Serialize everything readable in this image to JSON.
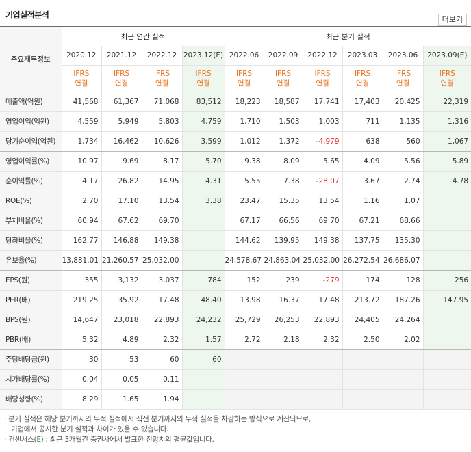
{
  "section_title": "기업실적분석",
  "more_label": "더보기",
  "header": {
    "row_label": "주요재무정보",
    "annual_group": "최근 연간 실적",
    "quarter_group": "최근 분기 실적",
    "annual_periods": [
      "2020.12",
      "2021.12",
      "2022.12",
      "2023.12(E)"
    ],
    "quarter_periods": [
      "2022.06",
      "2022.09",
      "2022.12",
      "2023.03",
      "2023.06",
      "2023.09(E)"
    ],
    "ifrs_top": "IFRS",
    "ifrs_bottom": "연결"
  },
  "rows": [
    {
      "label": "매출액(억원)",
      "values": [
        "41,568",
        "61,367",
        "71,068",
        "83,512",
        "18,223",
        "18,587",
        "17,741",
        "17,403",
        "20,425",
        "22,319"
      ]
    },
    {
      "label": "영업이익(억원)",
      "values": [
        "4,559",
        "5,949",
        "5,803",
        "4,759",
        "1,710",
        "1,503",
        "1,003",
        "711",
        "1,135",
        "1,316"
      ]
    },
    {
      "label": "당기순이익(억원)",
      "values": [
        "1,734",
        "16,462",
        "10,626",
        "3,599",
        "1,012",
        "1,372",
        "-4,979",
        "638",
        "560",
        "1,067"
      ]
    },
    {
      "label": "영업이익률(%)",
      "values": [
        "10.97",
        "9.69",
        "8.17",
        "5.70",
        "9.38",
        "8.09",
        "5.65",
        "4.09",
        "5.56",
        "5.89"
      ]
    },
    {
      "label": "순이익률(%)",
      "values": [
        "4.17",
        "26.82",
        "14.95",
        "4.31",
        "5.55",
        "7.38",
        "-28.07",
        "3.67",
        "2.74",
        "4.78"
      ]
    },
    {
      "label": "ROE(%)",
      "values": [
        "2.70",
        "17.10",
        "13.54",
        "3.38",
        "23.47",
        "15.35",
        "13.54",
        "1.16",
        "1.07",
        ""
      ]
    },
    {
      "label": "부채비율(%)",
      "values": [
        "60.94",
        "67.62",
        "69.70",
        "",
        "67.17",
        "66.56",
        "69.70",
        "67.21",
        "68.66",
        ""
      ]
    },
    {
      "label": "당좌비율(%)",
      "values": [
        "162.77",
        "146.88",
        "149.38",
        "",
        "144.62",
        "139.95",
        "149.38",
        "137.75",
        "135.30",
        ""
      ]
    },
    {
      "label": "유보율(%)",
      "values": [
        "13,881.01",
        "21,260.57",
        "25,032.00",
        "",
        "24,578.67",
        "24,863.04",
        "25,032.00",
        "26,272.54",
        "26,686.07",
        ""
      ]
    },
    {
      "label": "EPS(원)",
      "values": [
        "355",
        "3,132",
        "3,037",
        "784",
        "152",
        "239",
        "-279",
        "174",
        "128",
        "256"
      ]
    },
    {
      "label": "PER(배)",
      "values": [
        "219.25",
        "35.92",
        "17.48",
        "48.40",
        "13.98",
        "16.37",
        "17.48",
        "213.72",
        "187.26",
        "147.95"
      ]
    },
    {
      "label": "BPS(원)",
      "values": [
        "14,647",
        "23,018",
        "22,893",
        "24,232",
        "25,729",
        "26,253",
        "22,893",
        "24,405",
        "24,264",
        ""
      ]
    },
    {
      "label": "PBR(배)",
      "values": [
        "5.32",
        "4.89",
        "2.32",
        "1.57",
        "2.72",
        "2.18",
        "2.32",
        "2.50",
        "2.02",
        ""
      ]
    },
    {
      "label": "주당배당금(원)",
      "values": [
        "30",
        "53",
        "60",
        "60",
        "",
        "",
        "",
        "",
        "",
        ""
      ]
    },
    {
      "label": "시가배당률(%)",
      "values": [
        "0.04",
        "0.05",
        "0.11",
        "",
        "",
        "",
        "",
        "",
        "",
        ""
      ]
    },
    {
      "label": "배당성향(%)",
      "values": [
        "8.29",
        "1.65",
        "1.94",
        "",
        "",
        "",
        "",
        "",
        "",
        ""
      ]
    }
  ],
  "notes": {
    "line1": "· 분기 실적은 해당 분기까지의 누적 실적에서 직전 분기까지의 누적 실적을 차감하는 방식으로 계산되므로,",
    "line2": "기업에서 공시한 분기 실적과 차이가 있을 수 있습니다.",
    "line3_a": "· 컨센서스(",
    "line3_e": "E",
    "line3_b": ") : 최근 3개월간 증권사에서 발표한 전망치의 평균값입니다."
  },
  "colors": {
    "accent": "#e8721c",
    "estimate_bg": "#eef7ee",
    "negative": "#e62828",
    "label_bg": "#f6f6f6"
  }
}
